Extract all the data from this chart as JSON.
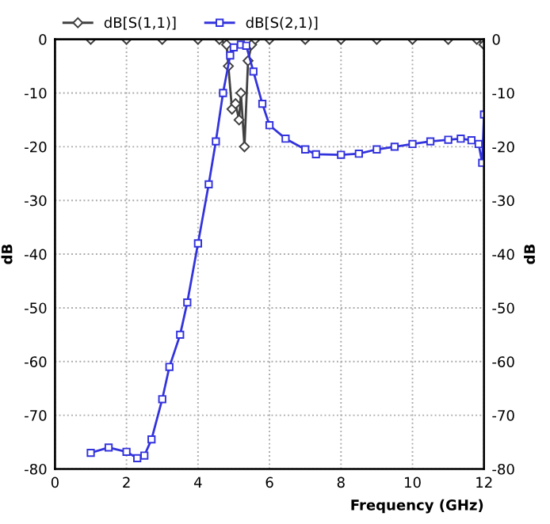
{
  "chart_data": {
    "type": "line",
    "xlabel": "Frequency (GHz)",
    "ylabel": "dB",
    "y2label": "dB",
    "xlim": [
      0,
      12
    ],
    "xticks": [
      0,
      2,
      4,
      6,
      8,
      10,
      12
    ],
    "ylim": [
      -80,
      0
    ],
    "yticks": [
      -80,
      -70,
      -60,
      -50,
      -40,
      -30,
      -20,
      -10,
      0
    ],
    "y2lim": [
      -80,
      0
    ],
    "y2ticks": [
      -80,
      -70,
      -60,
      -50,
      -40,
      -30,
      -20,
      -10,
      0
    ],
    "grid": true,
    "legend": "top",
    "line_style": "solid",
    "series": [
      {
        "name": "dB[S(1,1)]",
        "color": "#404040",
        "marker": "diamond",
        "x": [
          1,
          2,
          3,
          4,
          4.6,
          4.8,
          4.85,
          4.95,
          5.05,
          5.15,
          5.2,
          5.3,
          5.4,
          5.5,
          5.6,
          6,
          7,
          8,
          9,
          10,
          11,
          11.8,
          12
        ],
        "values": [
          0,
          0,
          0,
          0,
          0,
          -1,
          -5,
          -13,
          -12,
          -15,
          -10,
          -20,
          -4,
          -1,
          0,
          0,
          0,
          0,
          0,
          0,
          0,
          0,
          -1
        ]
      },
      {
        "name": "dB[S(2,1)]",
        "color": "#3333dd",
        "marker": "square",
        "axis": "y2",
        "x": [
          1,
          1.5,
          2,
          2.3,
          2.5,
          2.7,
          3,
          3.2,
          3.5,
          3.7,
          4,
          4.3,
          4.5,
          4.7,
          4.9,
          5,
          5.2,
          5.35,
          5.55,
          5.8,
          6,
          6.45,
          7,
          7.3,
          8,
          8.5,
          9,
          9.5,
          10,
          10.5,
          11,
          11.35,
          11.65,
          11.85,
          11.95,
          12
        ],
        "values": [
          -77,
          -76,
          -76.8,
          -78,
          -77.5,
          -74.5,
          -67,
          -61,
          -55,
          -49,
          -38,
          -27,
          -19,
          -10,
          -3,
          -1.5,
          -1,
          -1.2,
          -6,
          -12,
          -16,
          -18.5,
          -20.5,
          -21.4,
          -21.5,
          -21.3,
          -20.5,
          -20,
          -19.5,
          -19,
          -18.7,
          -18.5,
          -18.8,
          -19.5,
          -23,
          -14
        ]
      }
    ]
  }
}
